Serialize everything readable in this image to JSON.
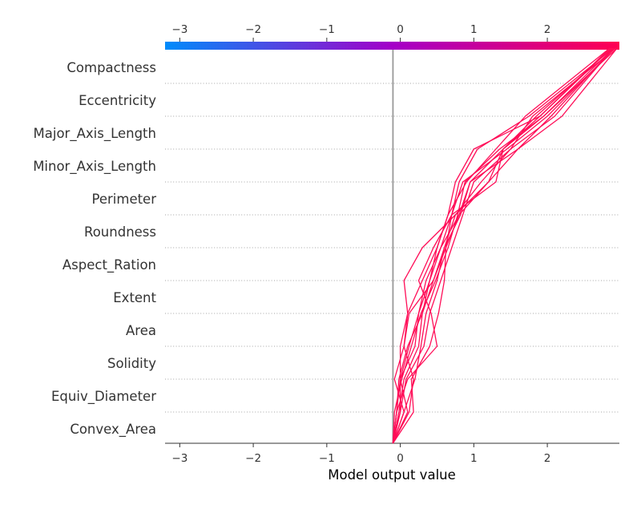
{
  "chart_data": {
    "type": "line",
    "subtype": "shap-decision-plot",
    "xlabel": "Model output value",
    "xlim": [
      -3.2,
      2.98
    ],
    "base_value": -0.1,
    "xticks": [
      -3,
      -2,
      -1,
      0,
      1,
      2
    ],
    "xtick_labels": [
      "−3",
      "−2",
      "−1",
      "0",
      "1",
      "2"
    ],
    "features": [
      "Compactness",
      "Eccentricity",
      "Major_Axis_Length",
      "Minor_Axis_Length",
      "Perimeter",
      "Roundness",
      "Aspect_Ration",
      "Extent",
      "Area",
      "Solidity",
      "Equiv_Diameter",
      "Convex_Area"
    ],
    "line_color": "#ff0d57",
    "colorbar": {
      "low_color": "#008bfb",
      "mid_color": "#a400c8",
      "high_color": "#ff0052"
    },
    "series": [
      {
        "values": [
          -0.1,
          -0.05,
          0.0,
          0.12,
          0.25,
          0.4,
          0.55,
          0.7,
          0.8,
          1.05,
          1.75,
          2.9
        ]
      },
      {
        "values": [
          -0.1,
          0.05,
          -0.08,
          0.05,
          0.1,
          0.3,
          0.5,
          0.65,
          0.75,
          1.0,
          1.9,
          2.85
        ]
      },
      {
        "values": [
          -0.1,
          0.18,
          0.15,
          0.4,
          0.52,
          0.6,
          0.62,
          0.8,
          1.2,
          1.6,
          2.2,
          2.95
        ]
      },
      {
        "values": [
          -0.1,
          -0.05,
          0.1,
          0.5,
          0.42,
          0.25,
          0.45,
          0.7,
          1.3,
          1.4,
          1.95,
          2.9
        ]
      },
      {
        "values": [
          -0.1,
          0.0,
          0.0,
          0.0,
          0.1,
          0.05,
          0.3,
          0.75,
          1.2,
          1.4,
          1.85,
          2.88
        ]
      },
      {
        "values": [
          -0.1,
          0.12,
          0.18,
          0.05,
          0.12,
          0.45,
          0.62,
          0.7,
          0.85,
          1.45,
          2.0,
          2.92
        ]
      },
      {
        "values": [
          -0.1,
          -0.02,
          0.05,
          0.25,
          0.3,
          0.45,
          0.6,
          0.82,
          0.95,
          1.4,
          1.9,
          2.87
        ]
      },
      {
        "values": [
          -0.1,
          0.05,
          0.2,
          0.28,
          0.35,
          0.5,
          0.6,
          0.75,
          1.1,
          1.5,
          1.8,
          2.93
        ]
      },
      {
        "values": [
          -0.1,
          0.1,
          0.0,
          0.2,
          0.25,
          0.35,
          0.55,
          0.8,
          0.95,
          1.6,
          2.05,
          2.9
        ]
      },
      {
        "values": [
          -0.1,
          -0.05,
          -0.02,
          0.1,
          0.3,
          0.4,
          0.5,
          0.65,
          0.9,
          1.3,
          1.7,
          2.85
        ]
      },
      {
        "values": [
          -0.1,
          -0.08,
          0.02,
          0.15,
          0.28,
          0.48,
          0.65,
          0.78,
          0.88,
          1.35,
          1.95,
          2.95
        ]
      },
      {
        "values": [
          -0.1,
          0.0,
          0.08,
          0.32,
          0.4,
          0.55,
          0.7,
          0.85,
          1.0,
          1.5,
          2.1,
          2.9
        ]
      }
    ]
  }
}
